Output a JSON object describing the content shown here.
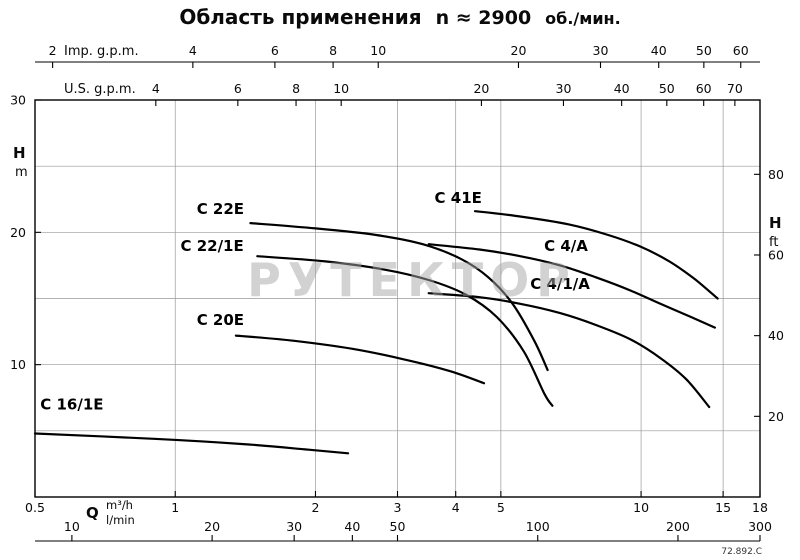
{
  "title": {
    "main": "Область применения",
    "speed": "n ≈ 2900",
    "unit": "об./мин."
  },
  "watermark": "РУТЕКТОР",
  "ref_code": "72.892.C",
  "axes_labels": {
    "imp": "Imp. g.p.m.",
    "us": "U.S. g.p.m.",
    "head": "H",
    "head_unit_left": "m",
    "head_unit_right": "ft",
    "flow": "Q",
    "flow_unit_1": "m³/h",
    "flow_unit_2": "l/min"
  },
  "chart_data": {
    "type": "line",
    "title": "Область применения n ≈ 2900 об./мин.",
    "x_axis": {
      "scale": "log",
      "unit": "m³/h",
      "min": 0.5,
      "max": 18,
      "ticks_m3h": [
        0.5,
        1,
        2,
        3,
        4,
        5,
        10,
        15,
        18
      ],
      "ticks_lmin": [
        10,
        20,
        30,
        40,
        50,
        100,
        200,
        300
      ],
      "lmin_to_m3h": 0.06
    },
    "top_axis_imp_gpm": {
      "label": "Imp. g.p.m.",
      "ticks": [
        2,
        4,
        6,
        8,
        10,
        20,
        30,
        40,
        50,
        60
      ],
      "m3h_per_unit": 0.27276
    },
    "top_axis_us_gpm": {
      "label": "U.S. g.p.m.",
      "ticks": [
        4,
        6,
        8,
        10,
        20,
        30,
        40,
        50,
        60,
        70
      ],
      "m3h_per_unit": 0.22712
    },
    "y_axis": {
      "unit": "m",
      "min": 0,
      "max": 30,
      "ticks_m": [
        10,
        20,
        30
      ],
      "grid_step_m": 5,
      "ticks_ft": [
        20,
        40,
        60,
        80
      ],
      "m_per_ft": 0.3048
    },
    "grid": true,
    "legend_position": "inline-labels",
    "series": [
      {
        "name": "C 16/1E",
        "label_q": 0.6,
        "label_h": 6.6,
        "points": [
          [
            0.5,
            4.8
          ],
          [
            0.9,
            4.4
          ],
          [
            1.4,
            4.0
          ],
          [
            1.9,
            3.6
          ],
          [
            2.35,
            3.3
          ]
        ]
      },
      {
        "name": "C 20E",
        "label_q": 1.25,
        "label_h": 13.0,
        "points": [
          [
            1.35,
            12.2
          ],
          [
            1.8,
            11.8
          ],
          [
            2.4,
            11.2
          ],
          [
            3.1,
            10.4
          ],
          [
            3.9,
            9.5
          ],
          [
            4.6,
            8.6
          ]
        ]
      },
      {
        "name": "C 22E",
        "label_q": 1.25,
        "label_h": 21.4,
        "points": [
          [
            1.45,
            20.7
          ],
          [
            2.0,
            20.3
          ],
          [
            2.7,
            19.8
          ],
          [
            3.4,
            19.1
          ],
          [
            4.1,
            18.0
          ],
          [
            4.7,
            16.6
          ],
          [
            5.3,
            14.6
          ],
          [
            5.9,
            11.8
          ],
          [
            6.3,
            9.6
          ]
        ]
      },
      {
        "name": "C 22/1E",
        "label_q": 1.2,
        "label_h": 18.6,
        "points": [
          [
            1.5,
            18.2
          ],
          [
            2.1,
            17.8
          ],
          [
            2.8,
            17.2
          ],
          [
            3.5,
            16.4
          ],
          [
            4.2,
            15.3
          ],
          [
            4.9,
            13.6
          ],
          [
            5.6,
            11.0
          ],
          [
            6.2,
            7.8
          ],
          [
            6.45,
            6.9
          ]
        ]
      },
      {
        "name": "C 41E",
        "label_q": 4.05,
        "label_h": 22.2,
        "points": [
          [
            4.4,
            21.6
          ],
          [
            5.5,
            21.2
          ],
          [
            7,
            20.6
          ],
          [
            8.5,
            19.8
          ],
          [
            10,
            18.9
          ],
          [
            11.5,
            17.8
          ],
          [
            13,
            16.5
          ],
          [
            14.6,
            15.0
          ]
        ]
      },
      {
        "name": "C 4/A",
        "label_q": 6.9,
        "label_h": 18.6,
        "points": [
          [
            3.5,
            19.1
          ],
          [
            4.5,
            18.7
          ],
          [
            5.5,
            18.2
          ],
          [
            6.7,
            17.5
          ],
          [
            8,
            16.6
          ],
          [
            9.5,
            15.6
          ],
          [
            11,
            14.6
          ],
          [
            12.8,
            13.6
          ],
          [
            14.4,
            12.8
          ]
        ]
      },
      {
        "name": "C 4/1/A",
        "label_q": 6.7,
        "label_h": 15.7,
        "points": [
          [
            3.5,
            15.4
          ],
          [
            4.5,
            15.1
          ],
          [
            5.5,
            14.6
          ],
          [
            6.7,
            13.9
          ],
          [
            8,
            13.0
          ],
          [
            9.5,
            11.9
          ],
          [
            11,
            10.5
          ],
          [
            12.5,
            8.9
          ],
          [
            14.0,
            6.8
          ]
        ]
      }
    ]
  }
}
